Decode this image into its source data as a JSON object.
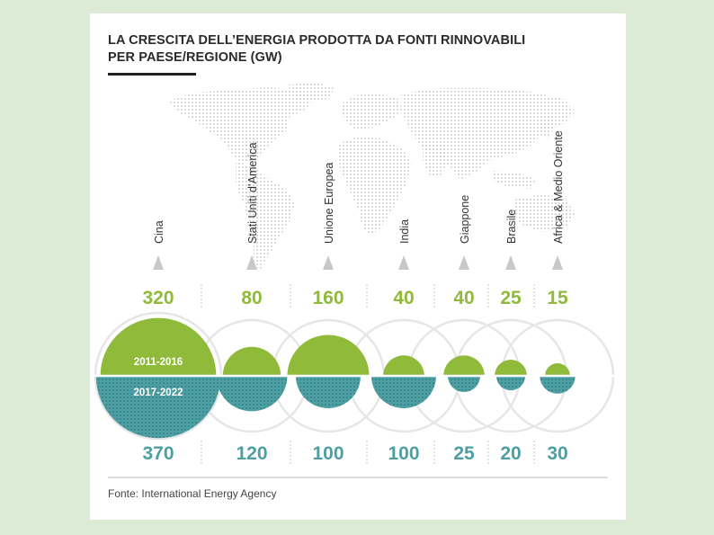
{
  "title_line1": "LA CRESCITA DELL’ENERGIA PRODOTTA DA FONTI RINNOVABILI",
  "title_line2": "PER PAESE/REGIONE (GW)",
  "source": "Fonte: International Energy Agency",
  "chart_data": {
    "type": "bubble-comparison",
    "title": "LA CRESCITA DELL’ENERGIA PRODOTTA DA FONTI RINNOVABILI PER PAESE/REGIONE (GW)",
    "unit": "GW",
    "categories": [
      "Cina",
      "Stati Uniti d’America",
      "Unione Europea",
      "India",
      "Giappone",
      "Brasile",
      "Africa & Medio Oriente"
    ],
    "series": [
      {
        "name": "2011-2016",
        "values": [
          320,
          80,
          160,
          40,
          40,
          25,
          15
        ]
      },
      {
        "name": "2017-2022",
        "values": [
          370,
          120,
          100,
          100,
          25,
          20,
          30
        ]
      }
    ],
    "label_top": [
      "320",
      "80",
      "160",
      "40",
      "40",
      "25",
      "15"
    ],
    "label_bottom": [
      "370",
      "120",
      "100",
      "100",
      "25",
      "20",
      "30"
    ]
  },
  "colors": {
    "green": "#8fba3a",
    "teal": "#4e9fa3",
    "teal_dot": "#2f7a80",
    "ring": "#e6e6e6",
    "arrow": "#c8c8c8",
    "map_dot": "#cfcfcf"
  }
}
